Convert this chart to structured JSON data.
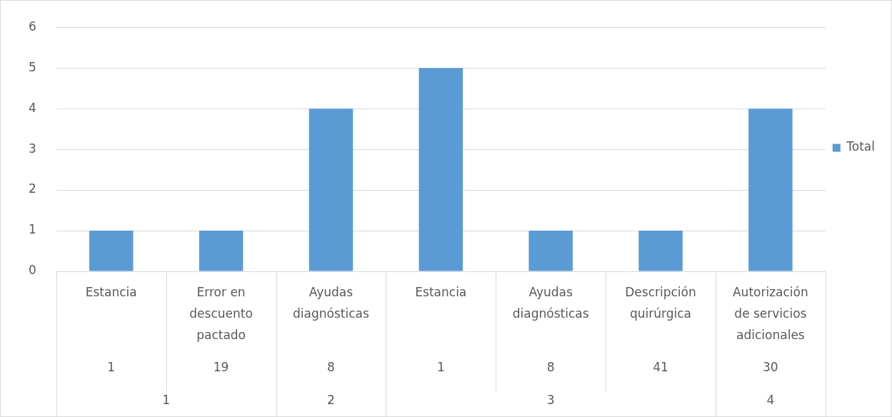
{
  "chart_data": {
    "type": "bar",
    "categories": [
      "Estancia",
      "Error en descuento pactado",
      "Ayudas diagnósticas",
      "Estancia",
      "Ayudas diagnósticas",
      "Descripción quirúrgica",
      "Autorización de servicios adicionales"
    ],
    "series": [
      {
        "name": "Total",
        "color": "#5b9bd5",
        "values": [
          1,
          1,
          4,
          5,
          1,
          1,
          4
        ]
      }
    ],
    "ylim": [
      0,
      6
    ],
    "yticks": [
      0,
      1,
      2,
      3,
      4,
      5,
      6
    ],
    "grid": "y",
    "legend": "right",
    "annotations": [
      "1",
      "19",
      "8",
      "1",
      "8",
      "41",
      "30",
      "1",
      "2",
      "3",
      "4"
    ]
  }
}
